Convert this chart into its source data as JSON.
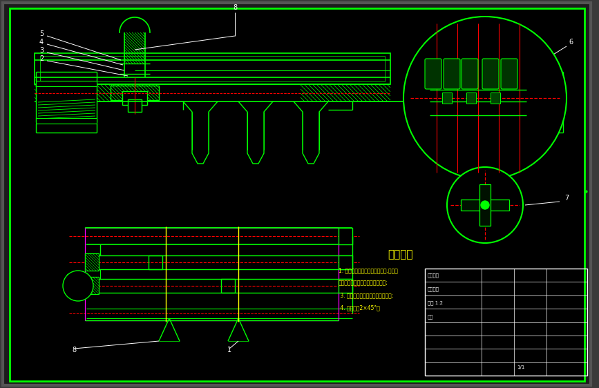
{
  "bg_color": "#000000",
  "gray_bg": "#3a3a3a",
  "inner_border_color": "#00ff00",
  "drawing_color": "#00ff00",
  "dark_green": "#004400",
  "red_color": "#ff0000",
  "magenta_color": "#ff00ff",
  "yellow_color": "#ffff00",
  "white_color": "#ffffff",
  "title_text": "技术要求",
  "tech_req": [
    "1. 装配时应严格按照工艺的要求,顺序组",
    "装各组件接触处应光洁平整无间隙;",
    " 3. 自锁及互锁装置所用球作为相球;",
    " 4. 未注倒角2×45°；"
  ]
}
